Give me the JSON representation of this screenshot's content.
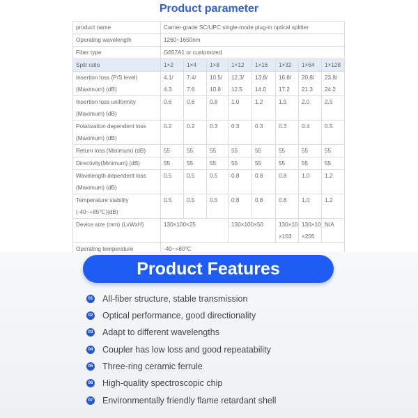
{
  "parameter": {
    "title": "Product parameter",
    "product_name_label": "product name",
    "product_name": "Carrier-grade SC/UPC single-mode plug-in optical splitter",
    "wavelength_label": "Operating wavelength",
    "wavelength": "1260~1650nm",
    "fiber_label": "Fiber type",
    "fiber": "G657A1 or customized",
    "split_label": "Split ratio",
    "splits": [
      "1×2",
      "1×4",
      "1×8",
      "1×12",
      "1×16",
      "1×32",
      "1×64",
      "1×128"
    ],
    "insertion": {
      "label1": "Insertion loss (P/S level)",
      "label2": "(Maximum) (dB)",
      "line1": [
        "4.1/",
        "7.4/",
        "10.5/",
        "12.3/",
        "13.8/",
        "16.8/",
        "20.8/",
        "23.8/"
      ],
      "line2": [
        "4.3",
        "7.6",
        "10.8",
        "12.5",
        "14.0",
        "17.2",
        "21.3",
        "24.2"
      ]
    },
    "uniformity": {
      "label1": "Insertion loss uniformity",
      "label2": "(Maximum) (dB)",
      "values": [
        "0.6",
        "0.6",
        "0.8",
        "1.0",
        "1.2",
        "1.5",
        "2.0",
        "2.5"
      ]
    },
    "pdl": {
      "label1": "Polarization dependent loss",
      "label2": "(Maximum) (dB)",
      "values": [
        "0.2",
        "0.2",
        "0.3",
        "0.3",
        "0.3",
        "0.3",
        "0.4",
        "0.5"
      ]
    },
    "return_loss": {
      "label": "Return loss (Minimum) (dB)",
      "values": [
        "55",
        "55",
        "55",
        "55",
        "55",
        "55",
        "55",
        "55"
      ]
    },
    "directivity": {
      "label": "Directivity(Minimum) (dB)",
      "values": [
        "55",
        "55",
        "55",
        "55",
        "55",
        "55",
        "55",
        "55"
      ]
    },
    "wdl": {
      "label1": "Wavelength dependent loss",
      "label2": "(Maximum) (dB)",
      "values": [
        "0.5",
        "0.5",
        "0.5",
        "0.8",
        "0.8",
        "0.8",
        "1.0",
        "1.2"
      ]
    },
    "temp_stability": {
      "label1": "Temperature stability",
      "label2": "(-40~+85℃)(dB)",
      "values": [
        "0.5",
        "0.5",
        "0.5",
        "0.8",
        "0.8",
        "0.8",
        "1.0",
        "1.2"
      ]
    },
    "device_size": {
      "label": "Device size (mm) (LxWxH)",
      "a": "130×100×25",
      "b": "130×100×50",
      "c1": "130×100",
      "c2": "×103",
      "d1": "130×100",
      "d2": "×205",
      "e": "N/A"
    },
    "op_temp": {
      "label": "Operating temperature",
      "value": "-40~+80℃"
    }
  },
  "features": {
    "title": "Product Features",
    "accent": "#1f5cf2",
    "items": [
      {
        "num": "01",
        "text": "All-fiber structure, stable transmission"
      },
      {
        "num": "02",
        "text": "Optical performance, good directionality"
      },
      {
        "num": "03",
        "text": "Adapt to different wavelengths"
      },
      {
        "num": "04",
        "text": "Coupler has low loss and good repeatability"
      },
      {
        "num": "05",
        "text": "Three-ring ceramic ferrule"
      },
      {
        "num": "06",
        "text": "High-quality spectroscopic chip"
      },
      {
        "num": "07",
        "text": "Environmentally friendly flame retardant shell"
      }
    ]
  }
}
